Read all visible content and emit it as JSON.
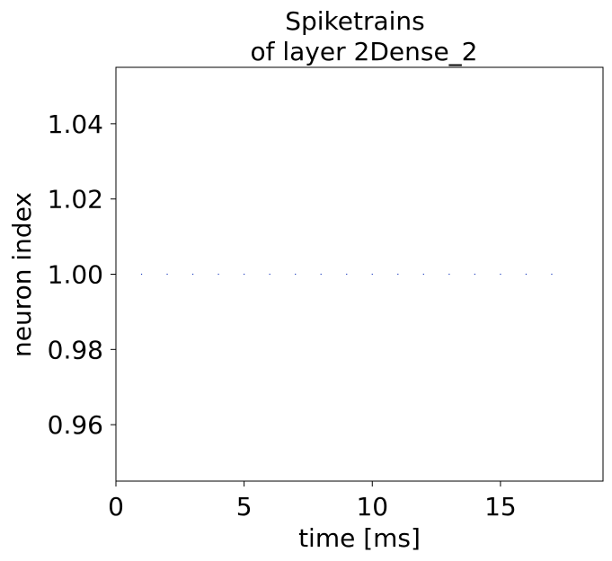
{
  "chart_data": {
    "type": "scatter",
    "title_line1": "Spiketrains",
    "title_line2": "of layer 2Dense_2",
    "xlabel": "time [ms]",
    "ylabel": "neuron index",
    "xlim": [
      0,
      19
    ],
    "ylim": [
      0.945,
      1.055
    ],
    "xticks": [
      0,
      5,
      10,
      15
    ],
    "xtick_labels": [
      "0",
      "5",
      "10",
      "15"
    ],
    "yticks": [
      0.96,
      0.98,
      1.0,
      1.02,
      1.04
    ],
    "ytick_labels": [
      "0.96",
      "0.98",
      "1.00",
      "1.02",
      "1.04"
    ],
    "grid": false,
    "marker_color": "#1f3fbf",
    "points": [
      {
        "x": 1,
        "y": 1
      },
      {
        "x": 2,
        "y": 1
      },
      {
        "x": 3,
        "y": 1
      },
      {
        "x": 4,
        "y": 1
      },
      {
        "x": 5,
        "y": 1
      },
      {
        "x": 6,
        "y": 1
      },
      {
        "x": 7,
        "y": 1
      },
      {
        "x": 8,
        "y": 1
      },
      {
        "x": 9,
        "y": 1
      },
      {
        "x": 10,
        "y": 1
      },
      {
        "x": 11,
        "y": 1
      },
      {
        "x": 12,
        "y": 1
      },
      {
        "x": 13,
        "y": 1
      },
      {
        "x": 14,
        "y": 1
      },
      {
        "x": 15,
        "y": 1
      },
      {
        "x": 16,
        "y": 1
      },
      {
        "x": 17,
        "y": 1
      }
    ]
  }
}
